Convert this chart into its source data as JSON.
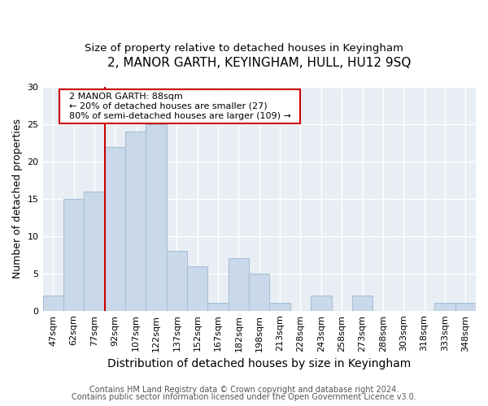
{
  "title": "2, MANOR GARTH, KEYINGHAM, HULL, HU12 9SQ",
  "subtitle": "Size of property relative to detached houses in Keyingham",
  "xlabel": "Distribution of detached houses by size in Keyingham",
  "ylabel": "Number of detached properties",
  "bar_labels": [
    "47sqm",
    "62sqm",
    "77sqm",
    "92sqm",
    "107sqm",
    "122sqm",
    "137sqm",
    "152sqm",
    "167sqm",
    "182sqm",
    "198sqm",
    "213sqm",
    "228sqm",
    "243sqm",
    "258sqm",
    "273sqm",
    "288sqm",
    "303sqm",
    "318sqm",
    "333sqm",
    "348sqm"
  ],
  "bar_values": [
    2,
    15,
    16,
    22,
    24,
    25,
    8,
    6,
    1,
    7,
    5,
    1,
    0,
    2,
    0,
    2,
    0,
    0,
    0,
    1,
    1
  ],
  "bar_color": "#c9d9ea",
  "bar_edge_color": "#a8c0d6",
  "ref_line_x": 2.5,
  "annotation_title": "2 MANOR GARTH: 88sqm",
  "annotation_line1": "← 20% of detached houses are smaller (27)",
  "annotation_line2": "80% of semi-detached houses are larger (109) →",
  "annotation_box_color": "white",
  "annotation_box_edge": "#cc0000",
  "ref_line_color": "#cc0000",
  "footer1": "Contains HM Land Registry data © Crown copyright and database right 2024.",
  "footer2": "Contains public sector information licensed under the Open Government Licence v3.0.",
  "ylim": [
    0,
    30
  ],
  "yticks": [
    0,
    5,
    10,
    15,
    20,
    25,
    30
  ],
  "fig_bg": "#ffffff",
  "plot_bg": "#e8eef4",
  "grid_color": "#ffffff",
  "title_fontsize": 11,
  "subtitle_fontsize": 9.5,
  "xlabel_fontsize": 10,
  "ylabel_fontsize": 9,
  "tick_fontsize": 8,
  "annot_fontsize": 8,
  "footer_fontsize": 7
}
